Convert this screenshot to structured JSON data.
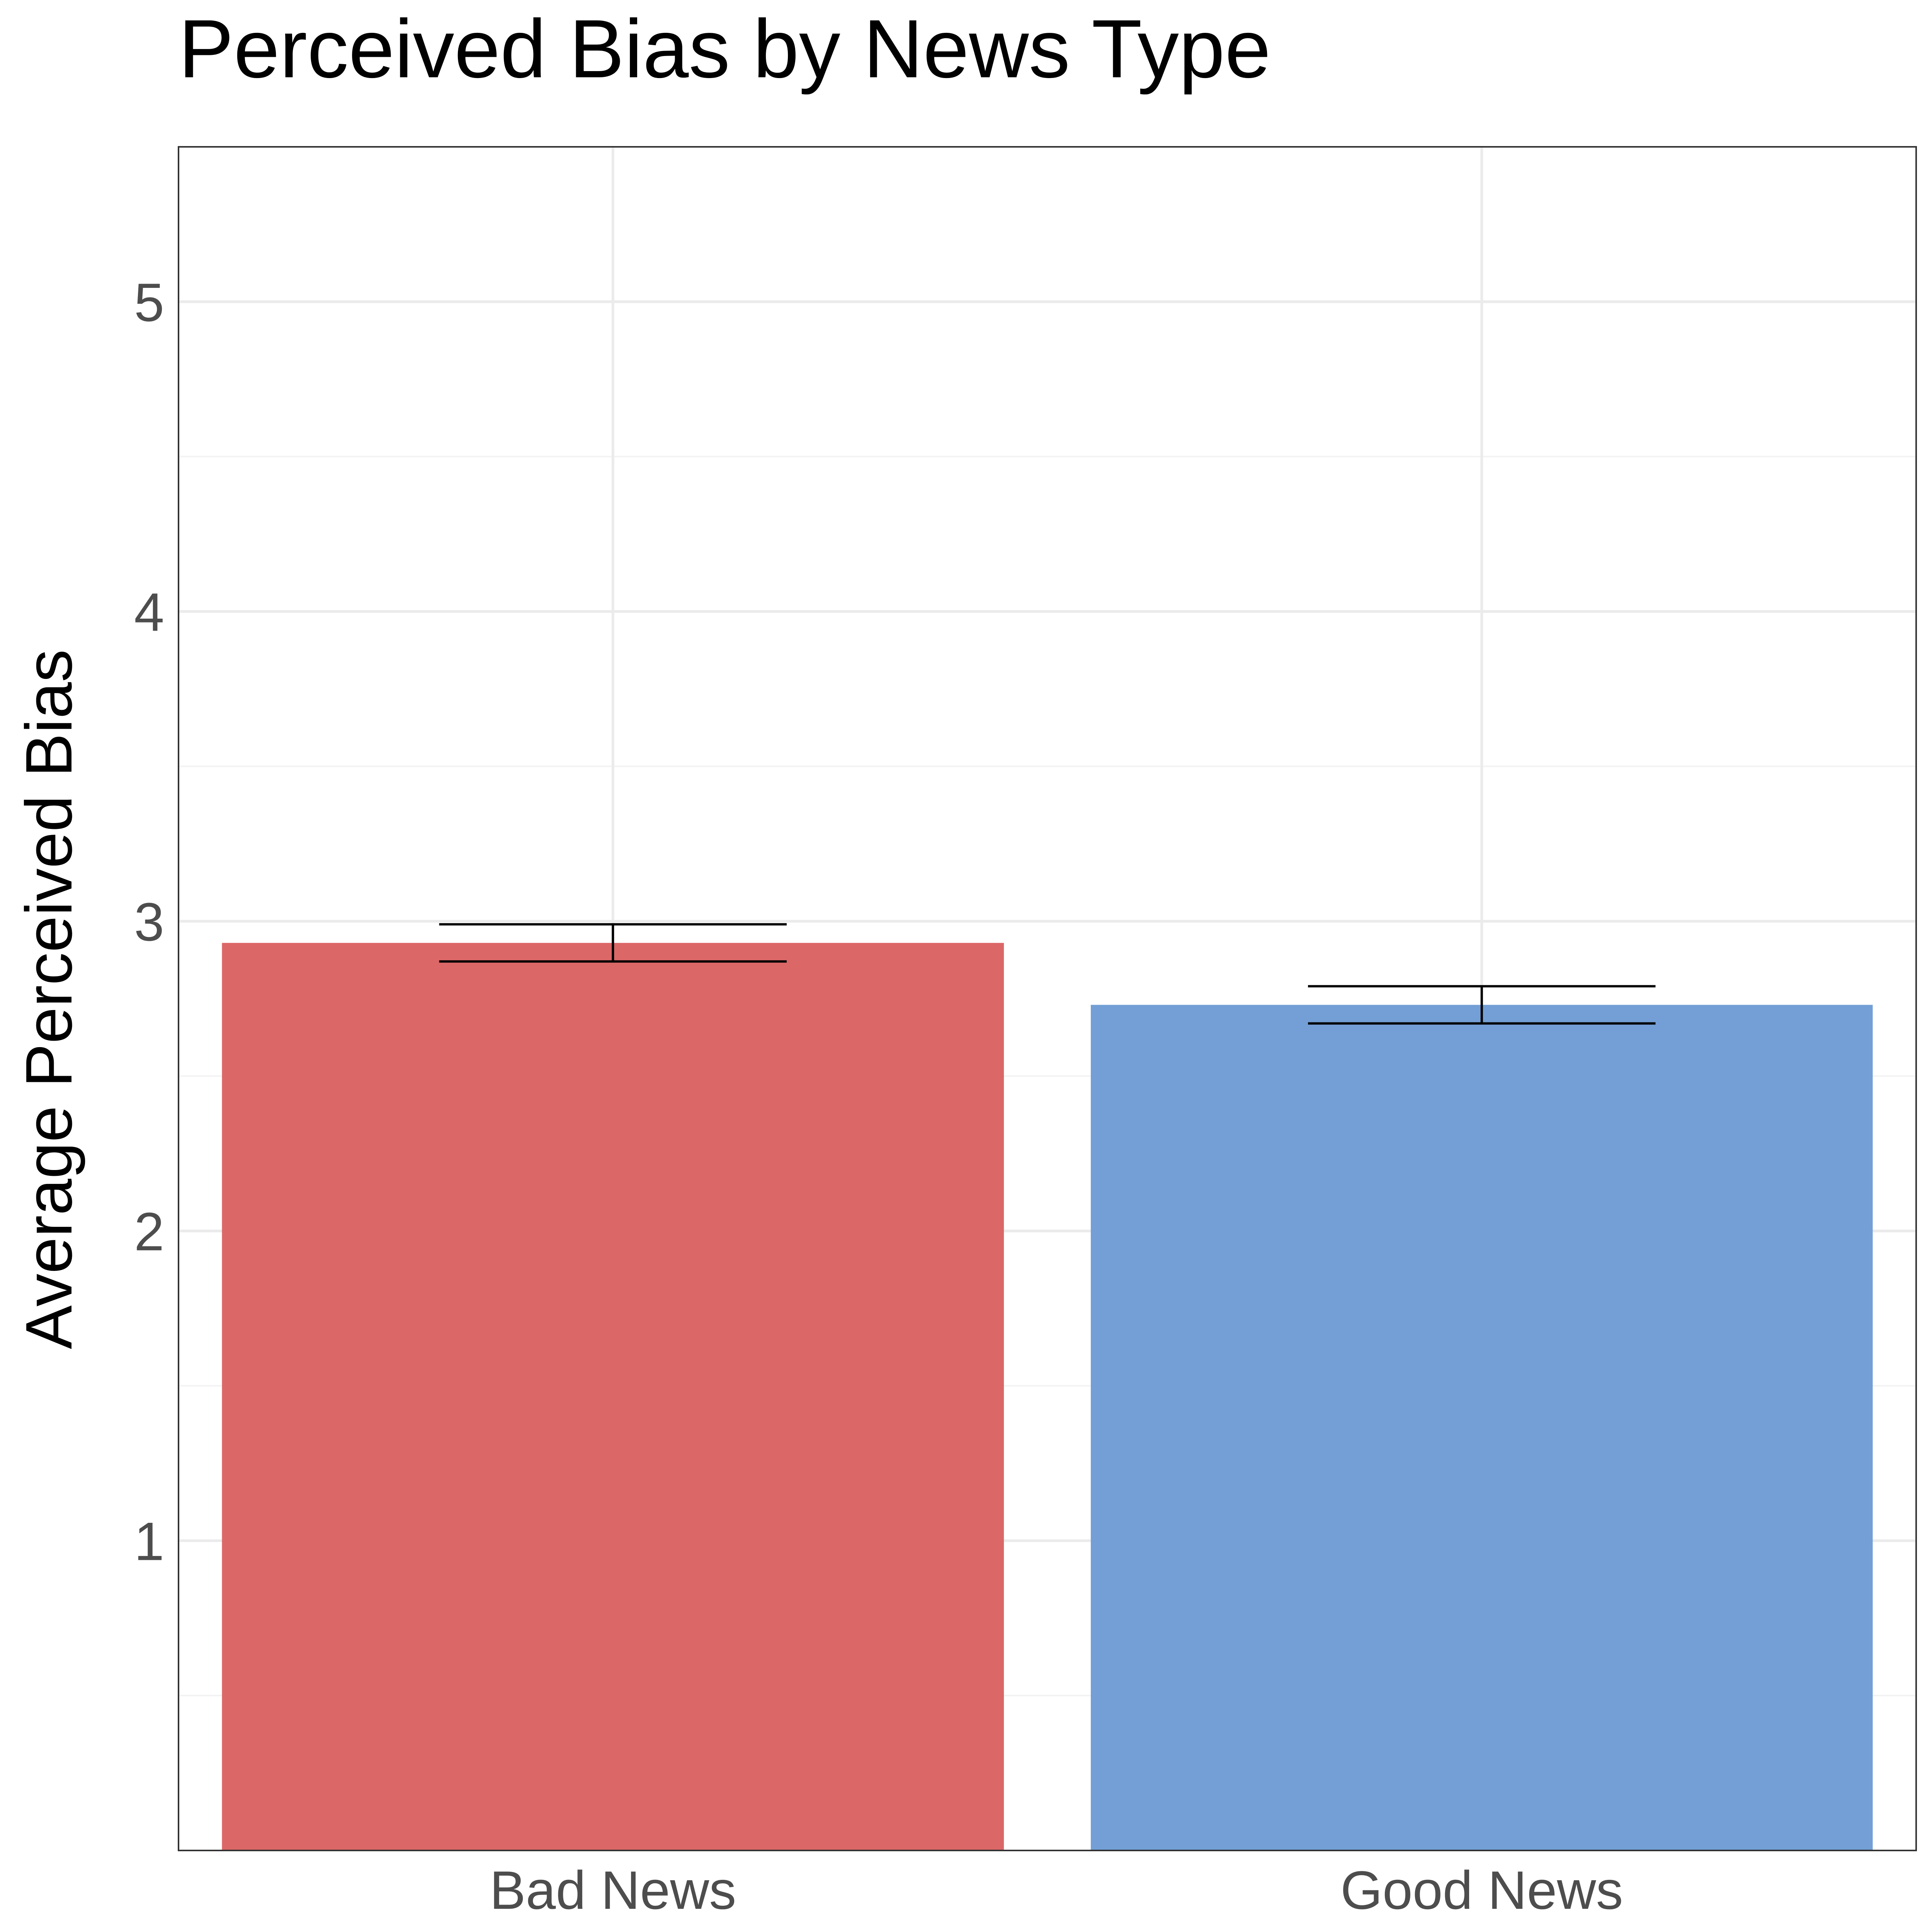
{
  "chart_data": {
    "type": "bar",
    "title": "Perceived Bias by News Type",
    "xlabel": "",
    "ylabel": "Average Perceived Bias",
    "categories": [
      "Bad News",
      "Good News"
    ],
    "values": [
      2.93,
      2.73
    ],
    "error_bars": [
      {
        "lower": 2.87,
        "upper": 2.99
      },
      {
        "lower": 2.67,
        "upper": 2.79
      }
    ],
    "colors": [
      "#dc6767",
      "#739fd6"
    ],
    "ylim": [
      0,
      5.5
    ],
    "yticks": [
      "1",
      "2",
      "3",
      "4",
      "5"
    ],
    "grid": true,
    "legend": "none"
  }
}
